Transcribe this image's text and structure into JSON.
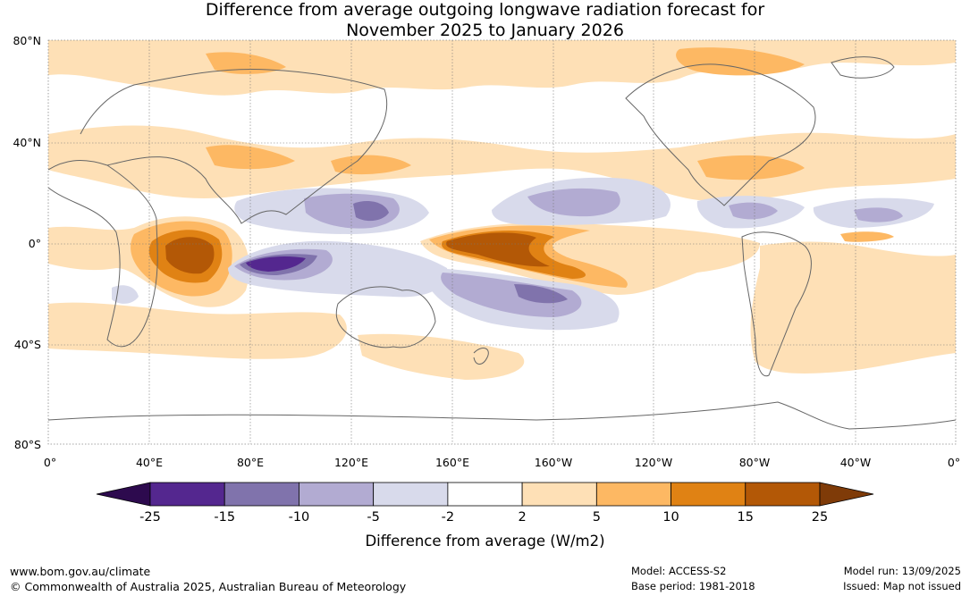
{
  "title_line1": "Difference from average outgoing longwave radiation forecast for",
  "title_line2": "November 2025 to January 2026",
  "lat_labels": [
    "80°N",
    "40°N",
    "0°",
    "40°S",
    "80°S"
  ],
  "lon_labels": [
    "0°",
    "40°E",
    "80°E",
    "120°E",
    "160°E",
    "160°W",
    "120°W",
    "80°W",
    "40°W",
    "0°"
  ],
  "colorbar": {
    "ticks": [
      "-25",
      "-15",
      "-10",
      "-5",
      "-2",
      "2",
      "5",
      "10",
      "15",
      "25"
    ],
    "colors": [
      "#2d0a4e",
      "#54278f",
      "#8073ac",
      "#b2abd2",
      "#d8daeb",
      "#ffffff",
      "#fee0b6",
      "#fdb863",
      "#e08214",
      "#b35806",
      "#7f3b08"
    ],
    "label": "Difference from average (W/m2)"
  },
  "footer": {
    "website": "www.bom.gov.au/climate",
    "copyright": "© Commonwealth of Australia 2025, Australian Bureau of Meteorology",
    "model": "Model: ACCESS-S2",
    "base_period": "Base period: 1981-2018",
    "model_run": "Model run: 13/09/2025",
    "issued": "Issued: Map not issued"
  }
}
